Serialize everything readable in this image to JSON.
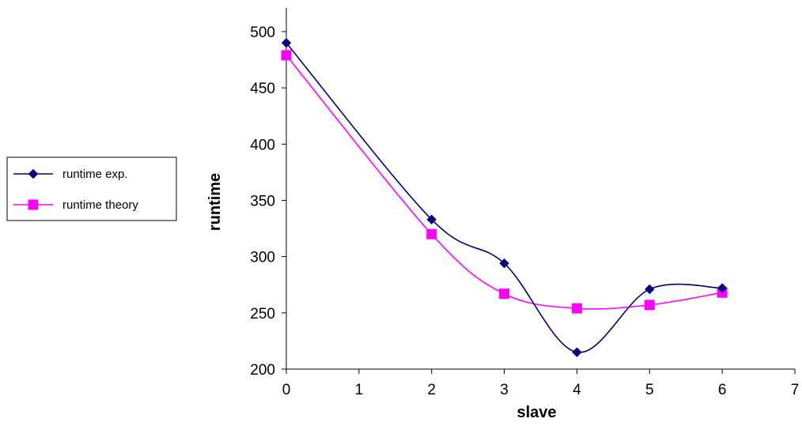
{
  "chart_data": {
    "type": "line",
    "title": "",
    "xlabel": "slave",
    "ylabel": "runtime",
    "xlim": [
      0,
      7
    ],
    "ylim": [
      200,
      500
    ],
    "xticks": [
      0,
      1,
      2,
      3,
      4,
      5,
      6,
      7
    ],
    "yticks": [
      200,
      250,
      300,
      350,
      400,
      450,
      500
    ],
    "grid": false,
    "smoothed": true,
    "legend_position": "left",
    "series": [
      {
        "name": "runtime exp.",
        "color": "#000080",
        "marker": "diamond",
        "x": [
          0,
          2,
          3,
          4,
          5,
          6
        ],
        "y": [
          490,
          333,
          294,
          215,
          271,
          272
        ]
      },
      {
        "name": "runtime theory",
        "color": "#FF00FF",
        "marker": "square",
        "x": [
          0,
          2,
          3,
          4,
          5,
          6
        ],
        "y": [
          479,
          320,
          267,
          254,
          257,
          268
        ]
      }
    ]
  }
}
